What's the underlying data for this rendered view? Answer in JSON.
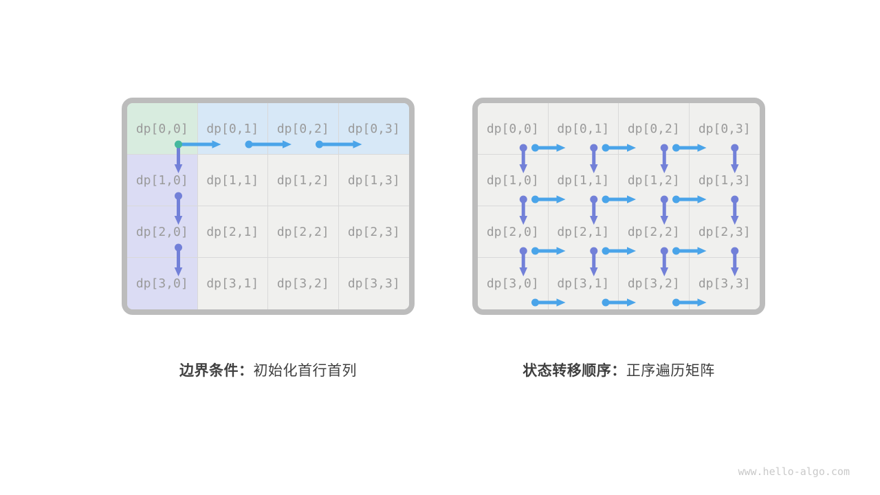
{
  "watermark": "www.hello-algo.com",
  "colors": {
    "page_bg": "#ffffff",
    "panel_border": "#bcbcbc",
    "grid_line": "#d9d9d9",
    "cell_plain": "#f0f0ee",
    "cell_origin": "#d8ecdf",
    "cell_first_row": "#d7e8f7",
    "cell_first_col": "#dbdcf4",
    "cell_text": "#9a9a9a",
    "caption_text": "#3f3f3f",
    "watermark_text": "#c9c9c9",
    "arrow_blue": "#4aa4e9",
    "arrow_purple": "#7280d8",
    "dot_blue": "#4aa4e9",
    "dot_purple": "#7280d8",
    "dot_teal": "#45b89e"
  },
  "panels": [
    {
      "id": "boundary",
      "caption_bold": "边界条件：",
      "caption_rest": "初始化首行首列",
      "cells": [
        [
          "dp[0,0]",
          "dp[0,1]",
          "dp[0,2]",
          "dp[0,3]"
        ],
        [
          "dp[1,0]",
          "dp[1,1]",
          "dp[1,2]",
          "dp[1,3]"
        ],
        [
          "dp[2,0]",
          "dp[2,1]",
          "dp[2,2]",
          "dp[2,3]"
        ],
        [
          "dp[3,0]",
          "dp[3,1]",
          "dp[3,2]",
          "dp[3,3]"
        ]
      ],
      "arrow_layout": "edge",
      "arrows": [
        {
          "row": 0,
          "col": 0,
          "dir": "right",
          "color": "blue",
          "dot": "teal"
        },
        {
          "row": 0,
          "col": 1,
          "dir": "right",
          "color": "blue",
          "dot": "blue"
        },
        {
          "row": 0,
          "col": 2,
          "dir": "right",
          "color": "blue",
          "dot": "blue"
        },
        {
          "row": 0,
          "col": 0,
          "dir": "down",
          "color": "purple",
          "dot": "teal"
        },
        {
          "row": 1,
          "col": 0,
          "dir": "down",
          "color": "purple",
          "dot": "purple"
        },
        {
          "row": 2,
          "col": 0,
          "dir": "down",
          "color": "purple",
          "dot": "purple"
        }
      ]
    },
    {
      "id": "order",
      "caption_bold": "状态转移顺序：",
      "caption_rest": "正序遍历矩阵",
      "cells": [
        [
          "dp[0,0]",
          "dp[0,1]",
          "dp[0,2]",
          "dp[0,3]"
        ],
        [
          "dp[1,0]",
          "dp[1,1]",
          "dp[1,2]",
          "dp[1,3]"
        ],
        [
          "dp[2,0]",
          "dp[2,1]",
          "dp[2,2]",
          "dp[2,3]"
        ],
        [
          "dp[3,0]",
          "dp[3,1]",
          "dp[3,2]",
          "dp[3,3]"
        ]
      ],
      "arrow_layout": "compact",
      "arrows": [
        {
          "row": 0,
          "col": 0,
          "dir": "down",
          "color": "purple",
          "dot": "purple"
        },
        {
          "row": 0,
          "col": 1,
          "dir": "down",
          "color": "purple",
          "dot": "purple"
        },
        {
          "row": 0,
          "col": 2,
          "dir": "down",
          "color": "purple",
          "dot": "purple"
        },
        {
          "row": 0,
          "col": 3,
          "dir": "down",
          "color": "purple",
          "dot": "purple"
        },
        {
          "row": 1,
          "col": 0,
          "dir": "down",
          "color": "purple",
          "dot": "purple"
        },
        {
          "row": 1,
          "col": 1,
          "dir": "down",
          "color": "purple",
          "dot": "purple"
        },
        {
          "row": 1,
          "col": 2,
          "dir": "down",
          "color": "purple",
          "dot": "purple"
        },
        {
          "row": 1,
          "col": 3,
          "dir": "down",
          "color": "purple",
          "dot": "purple"
        },
        {
          "row": 2,
          "col": 0,
          "dir": "down",
          "color": "purple",
          "dot": "purple"
        },
        {
          "row": 2,
          "col": 1,
          "dir": "down",
          "color": "purple",
          "dot": "purple"
        },
        {
          "row": 2,
          "col": 2,
          "dir": "down",
          "color": "purple",
          "dot": "purple"
        },
        {
          "row": 2,
          "col": 3,
          "dir": "down",
          "color": "purple",
          "dot": "purple"
        },
        {
          "row": 0,
          "col": 0,
          "dir": "right",
          "color": "blue",
          "dot": "blue"
        },
        {
          "row": 0,
          "col": 1,
          "dir": "right",
          "color": "blue",
          "dot": "blue"
        },
        {
          "row": 0,
          "col": 2,
          "dir": "right",
          "color": "blue",
          "dot": "blue"
        },
        {
          "row": 1,
          "col": 0,
          "dir": "right",
          "color": "blue",
          "dot": "blue"
        },
        {
          "row": 1,
          "col": 1,
          "dir": "right",
          "color": "blue",
          "dot": "blue"
        },
        {
          "row": 1,
          "col": 2,
          "dir": "right",
          "color": "blue",
          "dot": "blue"
        },
        {
          "row": 2,
          "col": 0,
          "dir": "right",
          "color": "blue",
          "dot": "blue"
        },
        {
          "row": 2,
          "col": 1,
          "dir": "right",
          "color": "blue",
          "dot": "blue"
        },
        {
          "row": 2,
          "col": 2,
          "dir": "right",
          "color": "blue",
          "dot": "blue"
        },
        {
          "row": 3,
          "col": 0,
          "dir": "right",
          "color": "blue",
          "dot": "blue"
        },
        {
          "row": 3,
          "col": 1,
          "dir": "right",
          "color": "blue",
          "dot": "blue"
        },
        {
          "row": 3,
          "col": 2,
          "dir": "right",
          "color": "blue",
          "dot": "blue"
        }
      ]
    }
  ]
}
